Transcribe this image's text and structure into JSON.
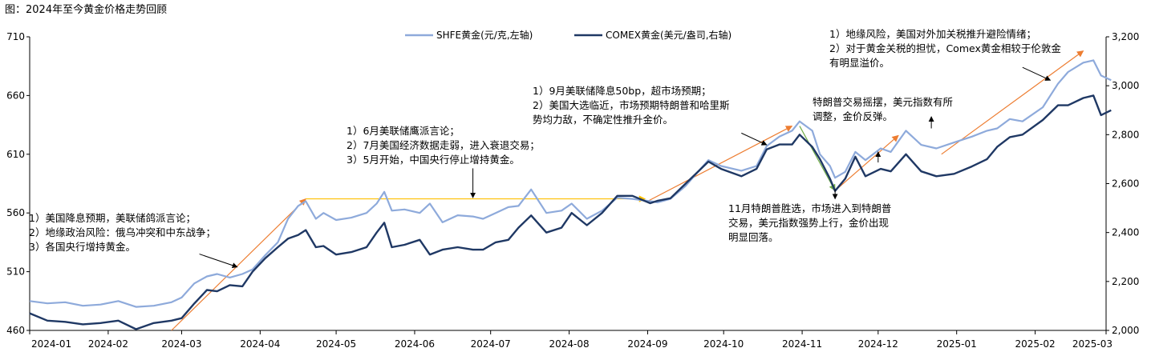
{
  "figure_title": "图：2024年至今黄金价格走势回顾",
  "annotations": [
    {
      "lines": [
        "1）美国降息预期，美联储鸽派言论；",
        "2）地缘政治风险：俄乌冲突和中东战争；",
        "3）各国央行增持黄金。"
      ]
    },
    {
      "lines": [
        "1）6月美联储鹰派言论；",
        "2）7月美国经济数据走弱，进入衰退交易；",
        "3）5月开始，中国央行停止增持黄金。"
      ]
    },
    {
      "lines": [
        "1）9月美联储降息50bp，超市场预期；",
        "2）美国大选临近，市场预期特朗普和哈里斯",
        "势均力敌，不确定性推升金价。"
      ]
    },
    {
      "lines": [
        "11月特朗普胜选，市场进入到特朗普",
        "交易，美元指数强势上行，金价出现",
        "明显回落。"
      ]
    },
    {
      "lines": [
        "特朗普交易摇摆，美元指数有所",
        "调整，金价反弹。"
      ]
    },
    {
      "lines": [
        "1）地缘风险，美国对外加关税推升避险情绪；",
        "2）对于黄金关税的担忧，Comex黄金相较于伦敦金",
        "有明显溢价。"
      ]
    }
  ],
  "chart_data": {
    "type": "line",
    "x_tick_labels": [
      "2024-01",
      "2024-02",
      "2024-03",
      "2024-04",
      "2024-05",
      "2024-06",
      "2024-07",
      "2024-08",
      "2024-09",
      "2024-10",
      "2024-11",
      "2024-12",
      "2025-01",
      "2025-02",
      "2025-03"
    ],
    "xlim": [
      "2024-01-01",
      "2025-03-01"
    ],
    "y_left": {
      "ylim": [
        460,
        710
      ],
      "ticks": [
        "460",
        "510",
        "560",
        "610",
        "660",
        "710"
      ]
    },
    "y_right": {
      "ylim": [
        2000,
        3200
      ],
      "ticks": [
        "2,000",
        "2,200",
        "2,400",
        "2,600",
        "2,800",
        "3,000",
        "3,200"
      ]
    },
    "legend_position": "top-center",
    "series": [
      {
        "name": "SHFE黄金(元/克,左轴)",
        "axis": "left",
        "color": "#8eaadb",
        "points": [
          [
            "2024-01-01",
            485
          ],
          [
            "2024-01-08",
            483
          ],
          [
            "2024-01-15",
            484
          ],
          [
            "2024-01-22",
            481
          ],
          [
            "2024-01-29",
            482
          ],
          [
            "2024-02-05",
            485
          ],
          [
            "2024-02-12",
            480
          ],
          [
            "2024-02-19",
            481
          ],
          [
            "2024-02-26",
            484
          ],
          [
            "2024-03-01",
            488
          ],
          [
            "2024-03-06",
            500
          ],
          [
            "2024-03-11",
            506
          ],
          [
            "2024-03-15",
            508
          ],
          [
            "2024-03-20",
            505
          ],
          [
            "2024-03-25",
            508
          ],
          [
            "2024-03-29",
            512
          ],
          [
            "2024-04-03",
            524
          ],
          [
            "2024-04-08",
            535
          ],
          [
            "2024-04-12",
            555
          ],
          [
            "2024-04-16",
            566
          ],
          [
            "2024-04-19",
            570
          ],
          [
            "2024-04-23",
            555
          ],
          [
            "2024-04-26",
            560
          ],
          [
            "2024-05-01",
            554
          ],
          [
            "2024-05-07",
            556
          ],
          [
            "2024-05-13",
            560
          ],
          [
            "2024-05-17",
            568
          ],
          [
            "2024-05-20",
            578
          ],
          [
            "2024-05-23",
            562
          ],
          [
            "2024-05-28",
            563
          ],
          [
            "2024-06-03",
            560
          ],
          [
            "2024-06-07",
            568
          ],
          [
            "2024-06-12",
            552
          ],
          [
            "2024-06-18",
            558
          ],
          [
            "2024-06-24",
            557
          ],
          [
            "2024-06-28",
            555
          ],
          [
            "2024-07-03",
            560
          ],
          [
            "2024-07-08",
            565
          ],
          [
            "2024-07-12",
            566
          ],
          [
            "2024-07-17",
            580
          ],
          [
            "2024-07-23",
            560
          ],
          [
            "2024-07-29",
            562
          ],
          [
            "2024-08-02",
            568
          ],
          [
            "2024-08-08",
            555
          ],
          [
            "2024-08-14",
            562
          ],
          [
            "2024-08-20",
            573
          ],
          [
            "2024-08-26",
            572
          ],
          [
            "2024-09-02",
            570
          ],
          [
            "2024-09-05",
            569
          ],
          [
            "2024-09-10",
            572
          ],
          [
            "2024-09-16",
            583
          ],
          [
            "2024-09-20",
            593
          ],
          [
            "2024-09-25",
            605
          ],
          [
            "2024-09-30",
            600
          ],
          [
            "2024-10-08",
            596
          ],
          [
            "2024-10-14",
            600
          ],
          [
            "2024-10-18",
            617
          ],
          [
            "2024-10-23",
            625
          ],
          [
            "2024-10-28",
            630
          ],
          [
            "2024-10-31",
            638
          ],
          [
            "2024-11-05",
            630
          ],
          [
            "2024-11-08",
            610
          ],
          [
            "2024-11-12",
            600
          ],
          [
            "2024-11-14",
            590
          ],
          [
            "2024-11-18",
            595
          ],
          [
            "2024-11-22",
            612
          ],
          [
            "2024-11-26",
            605
          ],
          [
            "2024-12-02",
            615
          ],
          [
            "2024-12-06",
            612
          ],
          [
            "2024-12-12",
            630
          ],
          [
            "2024-12-18",
            618
          ],
          [
            "2024-12-24",
            615
          ],
          [
            "2024-12-31",
            620
          ],
          [
            "2025-01-07",
            625
          ],
          [
            "2025-01-13",
            630
          ],
          [
            "2025-01-17",
            632
          ],
          [
            "2025-01-22",
            640
          ],
          [
            "2025-01-27",
            638
          ],
          [
            "2025-02-04",
            650
          ],
          [
            "2025-02-10",
            670
          ],
          [
            "2025-02-14",
            680
          ],
          [
            "2025-02-20",
            688
          ],
          [
            "2025-02-24",
            690
          ],
          [
            "2025-02-27",
            677
          ],
          [
            "2025-03-03",
            673
          ]
        ]
      },
      {
        "name": "COMEX黄金(美元/盎司,右轴)",
        "axis": "right",
        "color": "#1f3864",
        "points": [
          [
            "2024-01-01",
            2070
          ],
          [
            "2024-01-08",
            2040
          ],
          [
            "2024-01-15",
            2035
          ],
          [
            "2024-01-22",
            2025
          ],
          [
            "2024-01-29",
            2030
          ],
          [
            "2024-02-05",
            2040
          ],
          [
            "2024-02-12",
            2005
          ],
          [
            "2024-02-19",
            2030
          ],
          [
            "2024-02-26",
            2040
          ],
          [
            "2024-03-01",
            2050
          ],
          [
            "2024-03-06",
            2110
          ],
          [
            "2024-03-11",
            2165
          ],
          [
            "2024-03-15",
            2160
          ],
          [
            "2024-03-20",
            2185
          ],
          [
            "2024-03-25",
            2180
          ],
          [
            "2024-03-29",
            2240
          ],
          [
            "2024-04-03",
            2295
          ],
          [
            "2024-04-08",
            2340
          ],
          [
            "2024-04-12",
            2375
          ],
          [
            "2024-04-16",
            2390
          ],
          [
            "2024-04-19",
            2410
          ],
          [
            "2024-04-23",
            2340
          ],
          [
            "2024-04-26",
            2345
          ],
          [
            "2024-05-01",
            2310
          ],
          [
            "2024-05-07",
            2320
          ],
          [
            "2024-05-13",
            2340
          ],
          [
            "2024-05-17",
            2400
          ],
          [
            "2024-05-20",
            2440
          ],
          [
            "2024-05-23",
            2340
          ],
          [
            "2024-05-28",
            2350
          ],
          [
            "2024-06-03",
            2370
          ],
          [
            "2024-06-07",
            2310
          ],
          [
            "2024-06-12",
            2330
          ],
          [
            "2024-06-18",
            2340
          ],
          [
            "2024-06-24",
            2330
          ],
          [
            "2024-06-28",
            2330
          ],
          [
            "2024-07-03",
            2360
          ],
          [
            "2024-07-08",
            2370
          ],
          [
            "2024-07-12",
            2420
          ],
          [
            "2024-07-17",
            2470
          ],
          [
            "2024-07-23",
            2400
          ],
          [
            "2024-07-29",
            2420
          ],
          [
            "2024-08-02",
            2480
          ],
          [
            "2024-08-08",
            2430
          ],
          [
            "2024-08-14",
            2480
          ],
          [
            "2024-08-20",
            2550
          ],
          [
            "2024-08-26",
            2550
          ],
          [
            "2024-09-02",
            2520
          ],
          [
            "2024-09-05",
            2530
          ],
          [
            "2024-09-10",
            2540
          ],
          [
            "2024-09-16",
            2600
          ],
          [
            "2024-09-20",
            2640
          ],
          [
            "2024-09-25",
            2690
          ],
          [
            "2024-09-30",
            2660
          ],
          [
            "2024-10-08",
            2630
          ],
          [
            "2024-10-14",
            2660
          ],
          [
            "2024-10-18",
            2740
          ],
          [
            "2024-10-23",
            2760
          ],
          [
            "2024-10-28",
            2760
          ],
          [
            "2024-10-31",
            2800
          ],
          [
            "2024-11-05",
            2750
          ],
          [
            "2024-11-08",
            2700
          ],
          [
            "2024-11-12",
            2620
          ],
          [
            "2024-11-14",
            2570
          ],
          [
            "2024-11-18",
            2620
          ],
          [
            "2024-11-22",
            2710
          ],
          [
            "2024-11-26",
            2630
          ],
          [
            "2024-12-02",
            2660
          ],
          [
            "2024-12-06",
            2650
          ],
          [
            "2024-12-12",
            2720
          ],
          [
            "2024-12-18",
            2650
          ],
          [
            "2024-12-24",
            2630
          ],
          [
            "2024-12-31",
            2640
          ],
          [
            "2025-01-07",
            2670
          ],
          [
            "2025-01-13",
            2700
          ],
          [
            "2025-01-17",
            2750
          ],
          [
            "2025-01-22",
            2790
          ],
          [
            "2025-01-27",
            2800
          ],
          [
            "2025-02-04",
            2860
          ],
          [
            "2025-02-10",
            2920
          ],
          [
            "2025-02-14",
            2920
          ],
          [
            "2025-02-20",
            2950
          ],
          [
            "2025-02-24",
            2960
          ],
          [
            "2025-02-27",
            2880
          ],
          [
            "2025-03-03",
            2900
          ]
        ]
      }
    ],
    "trend_arrows": [
      {
        "color": "#ed7d31",
        "from": [
          "2024-02-26",
          460
        ],
        "to": [
          "2024-04-19",
          572
        ]
      },
      {
        "color": "#ffc000",
        "from": [
          "2024-04-19",
          572
        ],
        "to": [
          "2024-08-31",
          572
        ]
      },
      {
        "color": "#ed7d31",
        "from": [
          "2024-09-01",
          570
        ],
        "to": [
          "2024-10-28",
          634
        ]
      },
      {
        "color": "#70ad47",
        "from": [
          "2024-10-31",
          634
        ],
        "to": [
          "2024-11-14",
          579
        ]
      },
      {
        "color": "#ed7d31",
        "from": [
          "2024-11-14",
          579
        ],
        "to": [
          "2024-12-09",
          626
        ]
      },
      {
        "color": "#ed7d31",
        "from": [
          "2024-12-26",
          610
        ],
        "to": [
          "2025-02-20",
          698
        ]
      }
    ],
    "pointer_arrows": [
      {
        "from": [
          "2024-03-08",
          525
        ],
        "to": [
          "2024-03-23",
          514
        ]
      },
      {
        "from": [
          "2024-06-24",
          598
        ],
        "to": [
          "2024-06-24",
          573
        ]
      },
      {
        "from": [
          "2024-10-08",
          628
        ],
        "to": [
          "2024-10-18",
          618
        ]
      },
      {
        "from": [
          "2024-11-14",
          580
        ],
        "to": [
          "2024-11-14",
          572
        ]
      },
      {
        "from": [
          "2024-12-01",
          603
        ],
        "to": [
          "2024-12-01",
          612
        ]
      },
      {
        "from": [
          "2024-12-22",
          632
        ],
        "to": [
          "2024-12-22",
          642
        ]
      },
      {
        "from": [
          "2025-01-27",
          684
        ],
        "to": [
          "2025-02-07",
          673
        ]
      }
    ]
  }
}
